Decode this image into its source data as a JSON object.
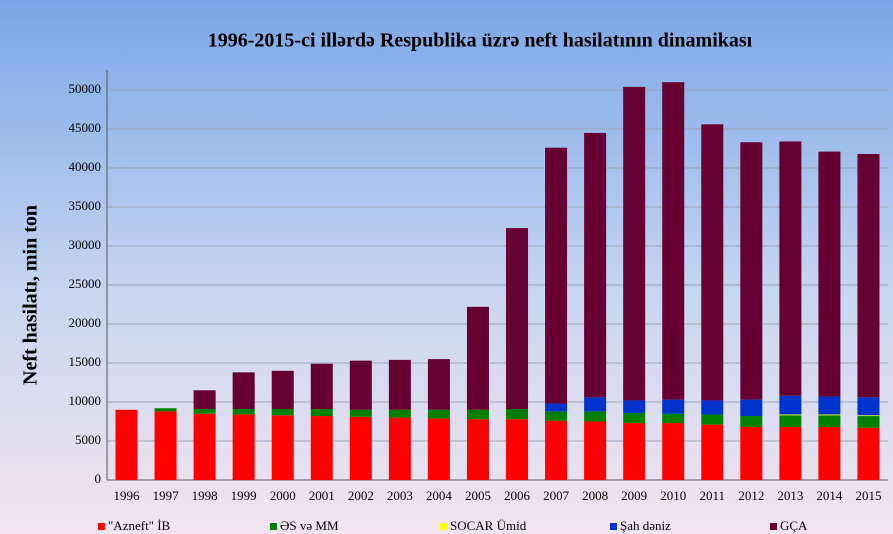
{
  "chart_data": {
    "type": "stacked_bar",
    "title": "1996-2015-ci illərdə Respublika üzrə neft hasilatının dinamikası",
    "y_label": "Neft hasilatı, min ton",
    "categories": [
      "1996",
      "1997",
      "1998",
      "1999",
      "2000",
      "2001",
      "2002",
      "2003",
      "2004",
      "2005",
      "2006",
      "2007",
      "2008",
      "2009",
      "2010",
      "2011",
      "2012",
      "2013",
      "2014",
      "2015"
    ],
    "series": [
      {
        "name": "\"Azneft\" İB",
        "color": "#ff0000",
        "values": [
          9000,
          8800,
          8500,
          8400,
          8300,
          8200,
          8100,
          8000,
          7900,
          7800,
          7800,
          7600,
          7500,
          7300,
          7300,
          7100,
          6800,
          6800,
          6800,
          6700
        ]
      },
      {
        "name": "ƏS və MM",
        "color": "#008000",
        "values": [
          0,
          400,
          600,
          700,
          800,
          900,
          900,
          1000,
          1100,
          1200,
          1300,
          1200,
          1300,
          1300,
          1200,
          1300,
          1400,
          1500,
          1500,
          1500
        ]
      },
      {
        "name": "SOCAR Ümid",
        "color": "#ffff00",
        "values": [
          0,
          0,
          0,
          0,
          0,
          0,
          0,
          0,
          0,
          0,
          0,
          0,
          0,
          0,
          0,
          0,
          0,
          100,
          100,
          100
        ]
      },
      {
        "name": "Şah dəniz",
        "color": "#0033cc",
        "values": [
          0,
          0,
          0,
          0,
          0,
          0,
          0,
          0,
          0,
          0,
          0,
          1000,
          1800,
          1600,
          1800,
          1800,
          2100,
          2400,
          2300,
          2300
        ]
      },
      {
        "name": "GÇA",
        "color": "#660033",
        "values": [
          0,
          0,
          2400,
          4700,
          4900,
          5800,
          6300,
          6400,
          6500,
          13200,
          23200,
          32800,
          33900,
          40200,
          40700,
          35400,
          33000,
          32600,
          31400,
          31200
        ]
      }
    ],
    "ylim": [
      0,
      50000
    ],
    "yticks": [
      0,
      5000,
      10000,
      15000,
      20000,
      25000,
      30000,
      35000,
      40000,
      45000,
      50000
    ],
    "grid": true
  }
}
